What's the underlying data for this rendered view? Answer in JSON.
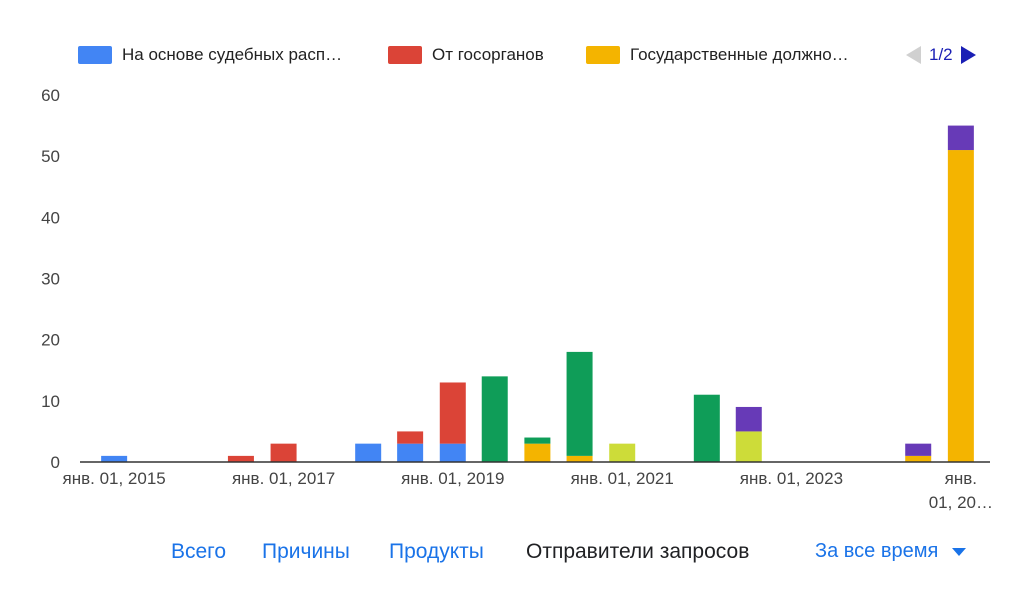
{
  "legend": {
    "items": [
      {
        "label": "На основе судебных расп…",
        "color": "#4285f4"
      },
      {
        "label": "От госорганов",
        "color": "#db4437"
      },
      {
        "label": "Государственные должно…",
        "color": "#f4b400"
      }
    ],
    "page": "1/2"
  },
  "tabs": [
    {
      "label": "Всего",
      "active": false
    },
    {
      "label": "Причины",
      "active": false
    },
    {
      "label": "Продукты",
      "active": false
    },
    {
      "label": "Отправители запросов",
      "active": true
    }
  ],
  "period": {
    "label": "За все время"
  },
  "chart_data": {
    "type": "bar",
    "stacked": true,
    "ylim": [
      0,
      60
    ],
    "yticks": [
      0,
      10,
      20,
      30,
      40,
      50,
      60
    ],
    "x_tick_labels": [
      [
        "янв. 01, 2015"
      ],
      [
        "янв. 01, 2017"
      ],
      [
        "янв. 01, 2019"
      ],
      [
        "янв. 01, 2021"
      ],
      [
        "янв. 01, 2023"
      ],
      [
        "янв.",
        "01, 20…"
      ]
    ],
    "x_tick_dates": [
      "2015-01-01",
      "2017-01-01",
      "2019-01-01",
      "2021-01-01",
      "2023-01-01",
      "2025-01-01"
    ],
    "grid": false,
    "legend_position": "top",
    "series": [
      {
        "name": "На основе судебных расп…",
        "color": "#4285f4"
      },
      {
        "name": "От госорганов",
        "color": "#db4437"
      },
      {
        "name": "Государственные должно…",
        "color": "#f4b400"
      },
      {
        "color": "#0f9d58"
      },
      {
        "color": "#cddc39"
      },
      {
        "color": "#673ab7"
      }
    ],
    "periods": [
      {
        "start": "2015-01-01",
        "values": [
          1,
          0,
          0,
          0,
          0,
          0
        ]
      },
      {
        "start": "2016-07-01",
        "values": [
          0,
          1,
          0,
          0,
          0,
          0
        ]
      },
      {
        "start": "2017-01-01",
        "values": [
          0,
          3,
          0,
          0,
          0,
          0
        ]
      },
      {
        "start": "2018-01-01",
        "values": [
          3,
          0,
          0,
          0,
          0,
          0
        ]
      },
      {
        "start": "2018-07-01",
        "values": [
          3,
          2,
          0,
          0,
          0,
          0
        ]
      },
      {
        "start": "2019-01-01",
        "values": [
          3,
          10,
          0,
          0,
          0,
          0
        ]
      },
      {
        "start": "2019-07-01",
        "values": [
          0,
          0,
          0,
          14,
          0,
          0
        ]
      },
      {
        "start": "2020-01-01",
        "values": [
          0,
          0,
          3,
          1,
          0,
          0
        ]
      },
      {
        "start": "2020-07-01",
        "values": [
          0,
          0,
          1,
          17,
          0,
          0
        ]
      },
      {
        "start": "2021-01-01",
        "values": [
          0,
          0,
          0,
          0,
          3,
          0
        ]
      },
      {
        "start": "2022-01-01",
        "values": [
          0,
          0,
          0,
          11,
          0,
          0
        ]
      },
      {
        "start": "2022-07-01",
        "values": [
          0,
          0,
          0,
          0,
          5,
          4
        ]
      },
      {
        "start": "2024-07-01",
        "values": [
          0,
          0,
          1,
          0,
          0,
          2
        ]
      },
      {
        "start": "2025-01-01",
        "values": [
          0,
          0,
          51,
          0,
          0,
          4
        ]
      }
    ]
  }
}
